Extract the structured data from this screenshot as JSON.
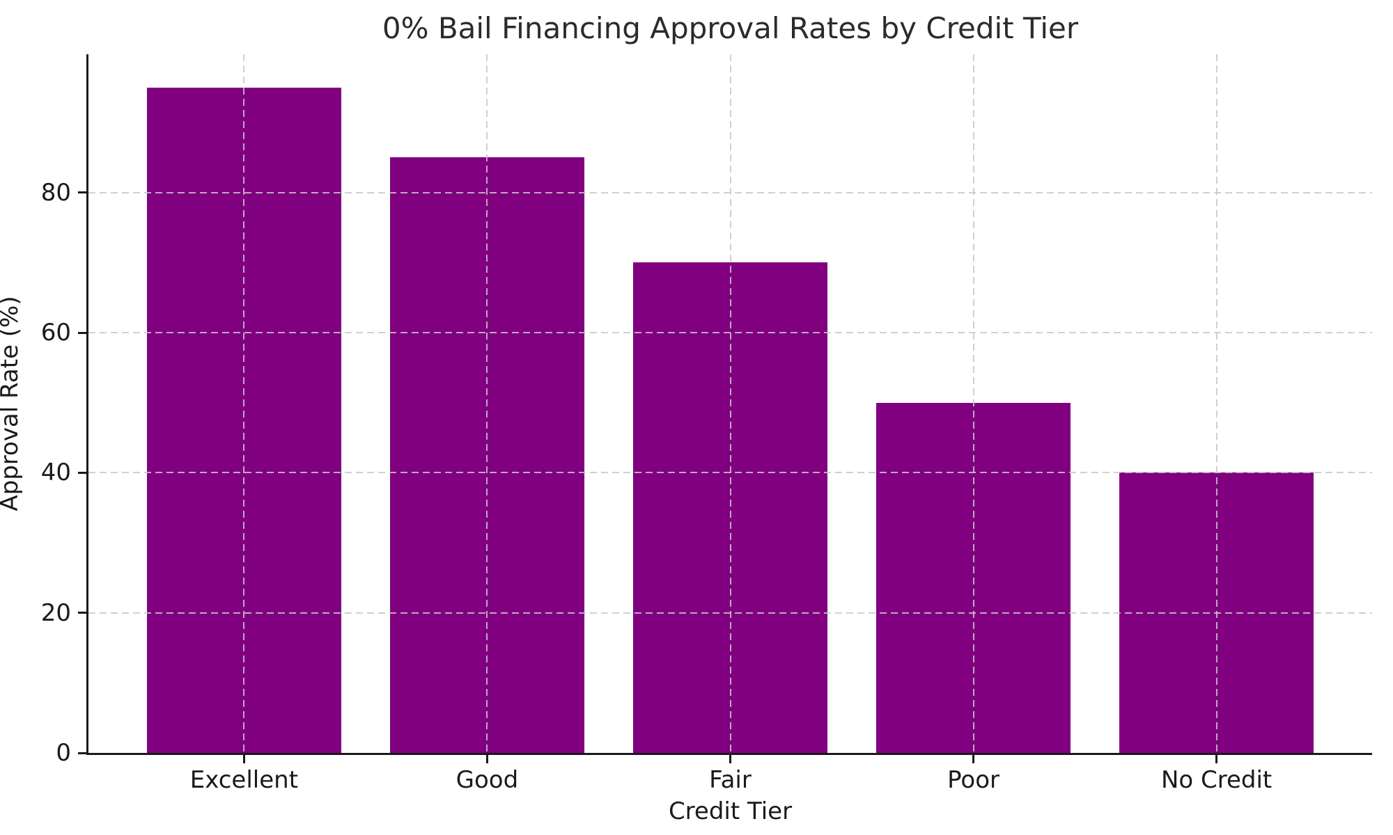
{
  "page": {
    "background_color": "#ffffff",
    "text_color": "#1a1a1a"
  },
  "chart_data": {
    "type": "bar",
    "title": "0% Bail Financing Approval Rates by Credit Tier",
    "xlabel": "Credit Tier",
    "ylabel": "Approval Rate (%)",
    "categories": [
      "Excellent",
      "Good",
      "Fair",
      "Poor",
      "No Credit"
    ],
    "values": [
      95,
      85,
      70,
      50,
      40
    ],
    "ylim": [
      0,
      99.75
    ],
    "yticks": [
      0,
      20,
      40,
      60,
      80
    ],
    "bar_color": "#800080",
    "bar_width_fraction": 0.8,
    "grid": {
      "horizontal": true,
      "vertical": true,
      "style": "dashed",
      "color": "#c8c8c8",
      "drawn_above_bars": true
    },
    "legend": null,
    "spines_visible": [
      "left",
      "bottom"
    ]
  }
}
